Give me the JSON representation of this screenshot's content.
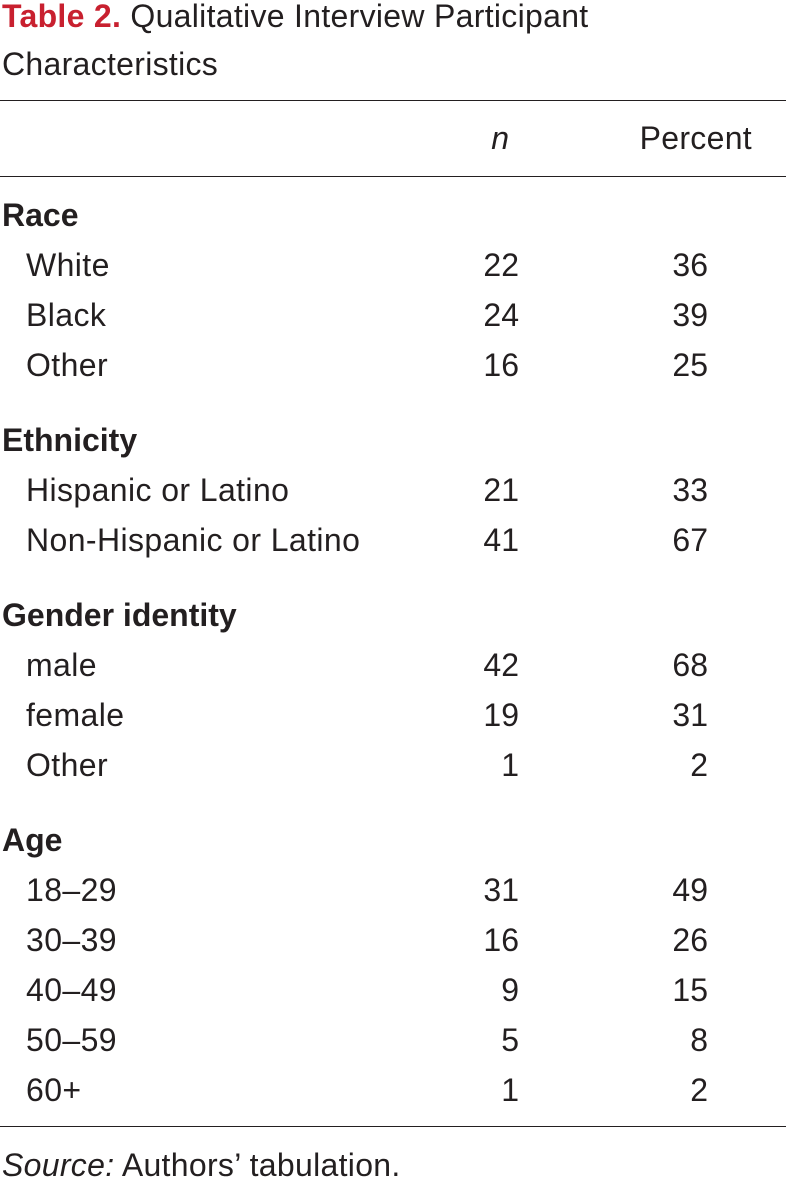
{
  "caption": {
    "label": "Table 2.",
    "title": " Qualitative Interview Participant Characteristics"
  },
  "header": {
    "n": "n",
    "percent": "Percent"
  },
  "groups": [
    {
      "name": "Race",
      "rows": [
        {
          "label": "White",
          "n": "22",
          "percent": "36"
        },
        {
          "label": "Black",
          "n": "24",
          "percent": "39"
        },
        {
          "label": "Other",
          "n": "16",
          "percent": "25"
        }
      ]
    },
    {
      "name": "Ethnicity",
      "rows": [
        {
          "label": "Hispanic or Latino",
          "n": "21",
          "percent": "33"
        },
        {
          "label": "Non-Hispanic or Latino",
          "n": "41",
          "percent": "67"
        }
      ]
    },
    {
      "name": "Gender identity",
      "rows": [
        {
          "label": "male",
          "n": "42",
          "percent": "68"
        },
        {
          "label": "female",
          "n": "19",
          "percent": "31"
        },
        {
          "label": "Other",
          "n": "1",
          "percent": "2"
        }
      ]
    },
    {
      "name": "Age",
      "rows": [
        {
          "label": "18–29",
          "n": "31",
          "percent": "49"
        },
        {
          "label": "30–39",
          "n": "16",
          "percent": "26"
        },
        {
          "label": "40–49",
          "n": "9",
          "percent": "15"
        },
        {
          "label": "50–59",
          "n": "5",
          "percent": "8"
        },
        {
          "label": "60+",
          "n": "1",
          "percent": "2"
        }
      ]
    }
  ],
  "source": {
    "label": "Source:",
    "text": " Authors’ tabulation."
  },
  "colors": {
    "caption_label": "#c8202f",
    "text": "#231f20"
  }
}
